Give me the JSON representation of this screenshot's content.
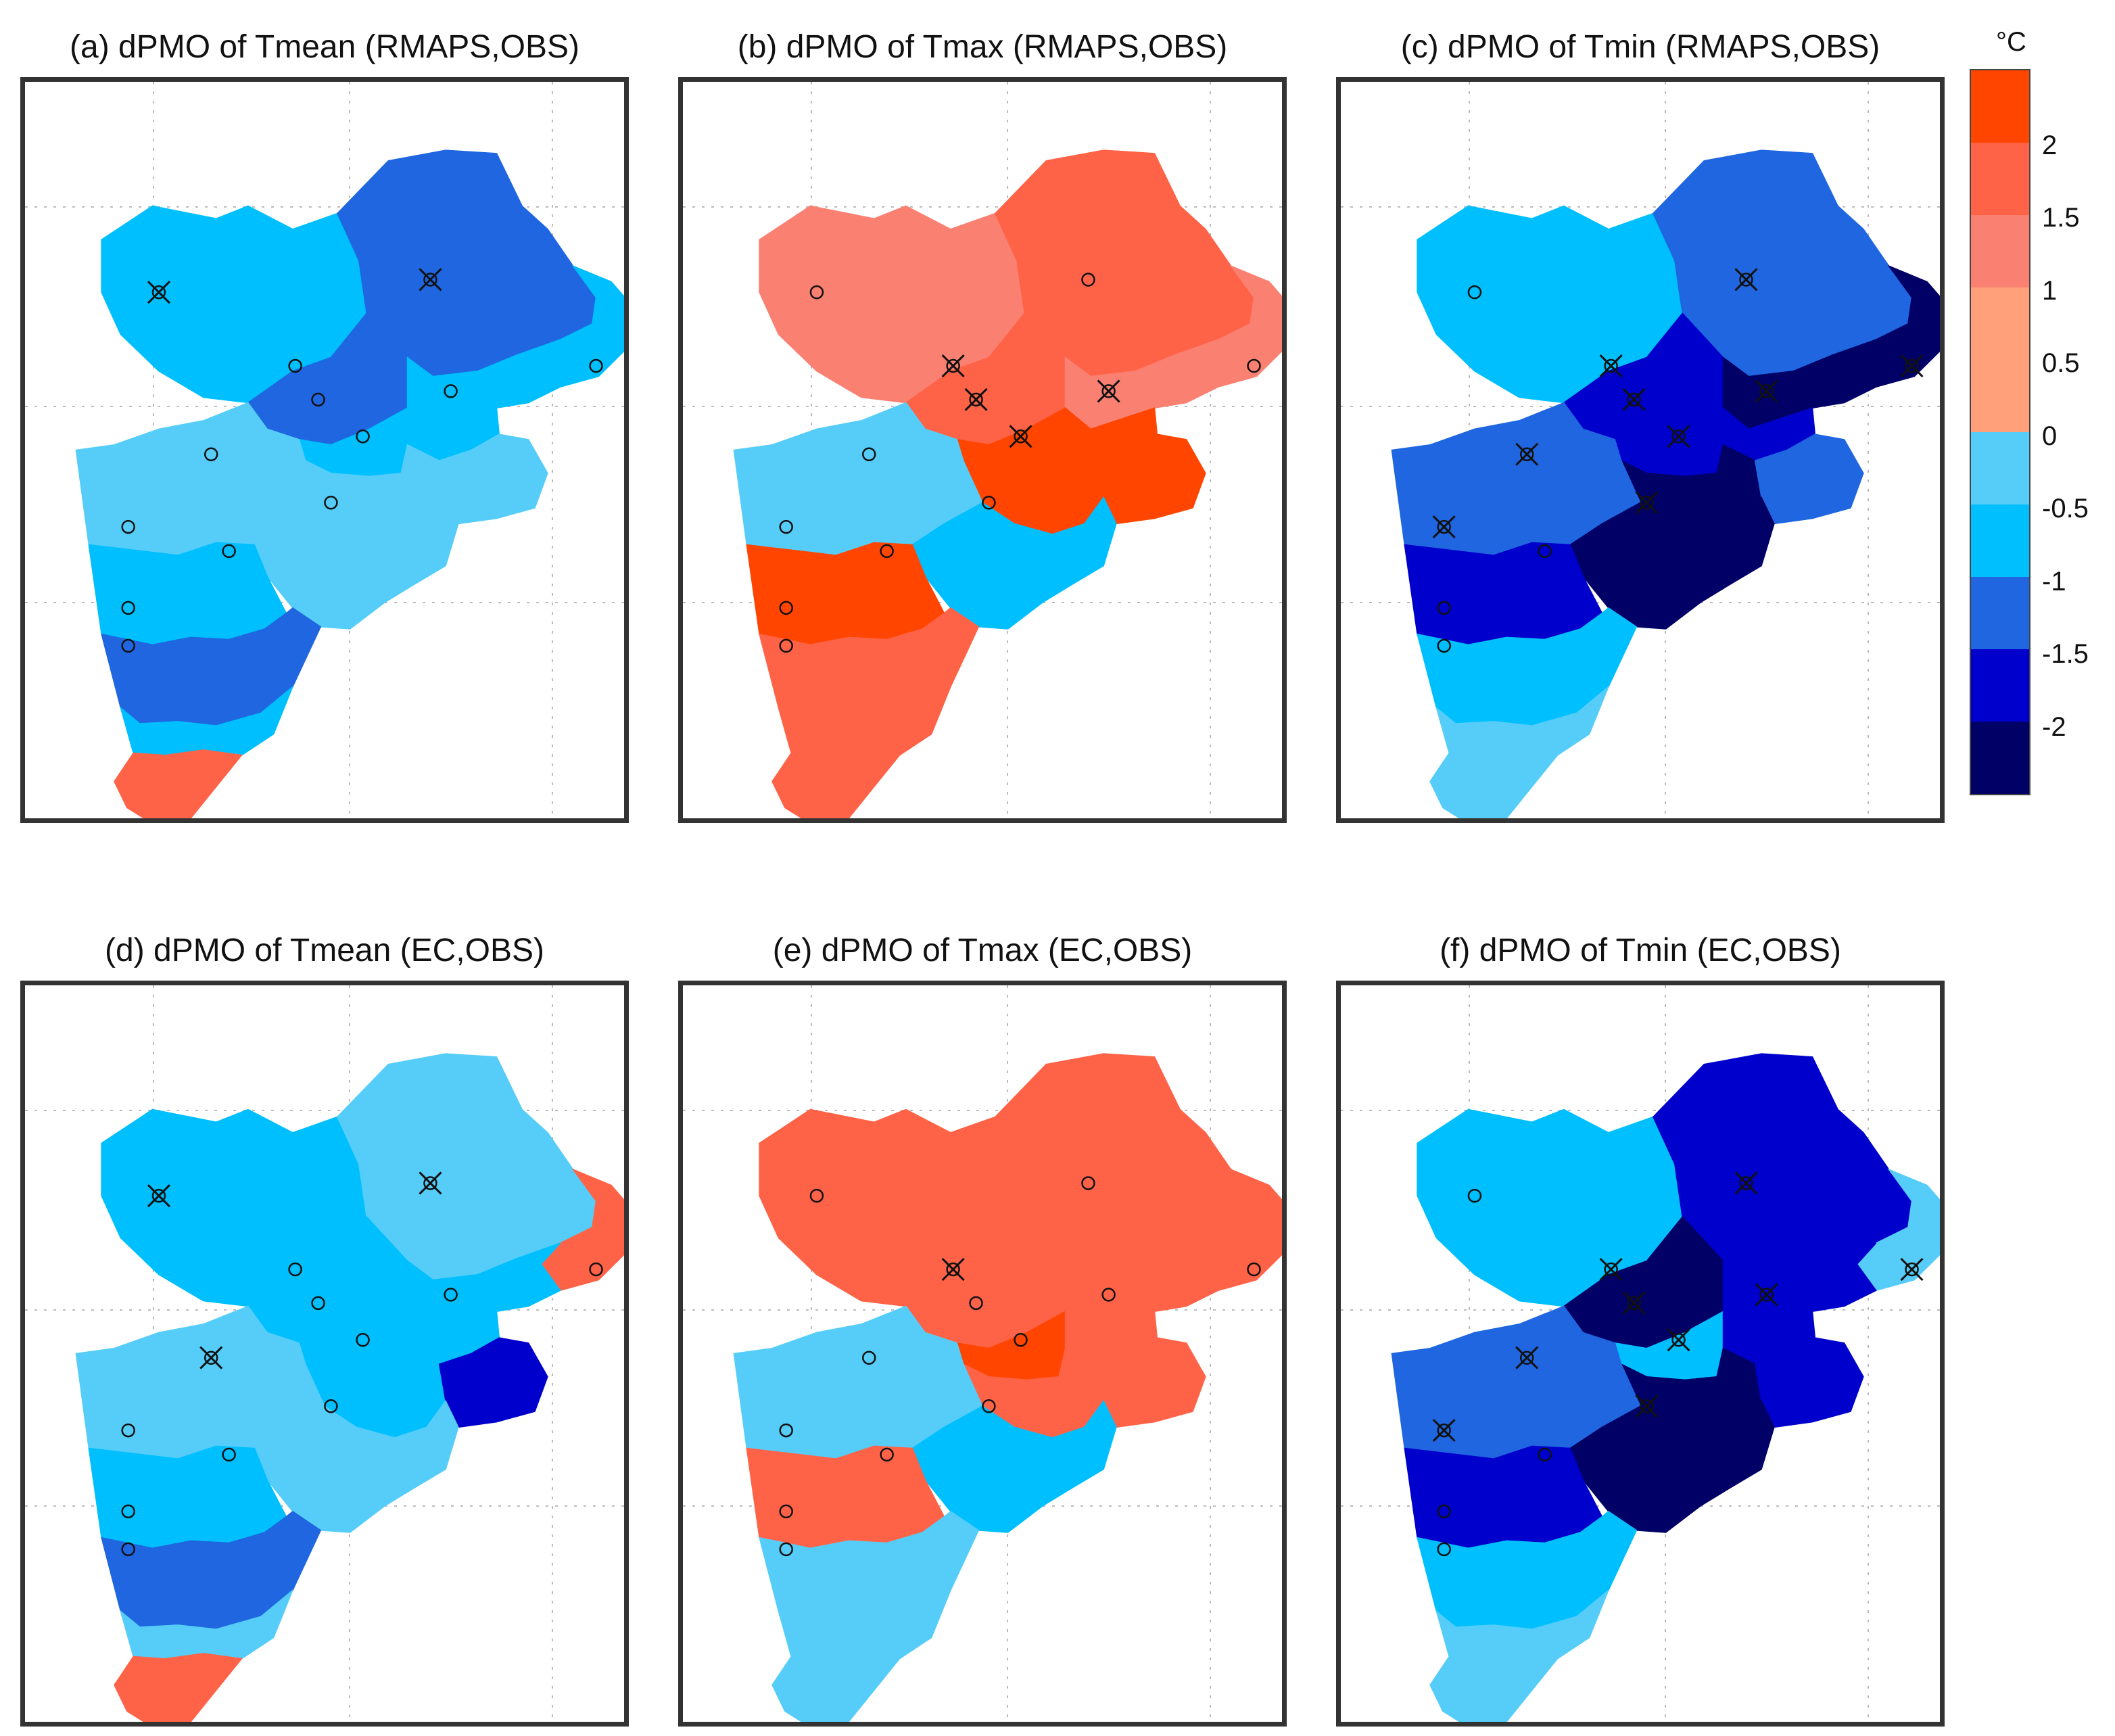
{
  "figure": {
    "panels": [
      {
        "id": "a",
        "title": "(a) dPMO of Tmean (RMAPS,OBS)",
        "regions": {
          "r1": 4,
          "r2": 3,
          "r3": 4,
          "r4": 3,
          "r5": 4,
          "r6": 4,
          "r7": 4,
          "r8": 5,
          "r9": 5,
          "r10": 6,
          "r11": 6,
          "r12": 4,
          "r13": 3,
          "r14": 4,
          "r15": 10
        },
        "stations": [
          "x",
          "x",
          "o",
          "o",
          "o",
          "o",
          "o",
          "o",
          "o",
          "o",
          "o",
          "o",
          "o"
        ]
      },
      {
        "id": "b",
        "title": "(b) dPMO of Tmax (RMAPS,OBS)",
        "regions": {
          "r1": 9,
          "r2": 10,
          "r3": 9,
          "r4": 10,
          "r5": 9,
          "r6": 11,
          "r7": 12,
          "r8": 12,
          "r9": 12,
          "r10": 5,
          "r11": 4,
          "r12": 11,
          "r13": 10,
          "r14": 10,
          "r15": 10
        },
        "stations": [
          "o",
          "o",
          "x",
          "x",
          "x",
          "x",
          "o",
          "o",
          "o",
          "o",
          "o",
          "o",
          "o"
        ]
      },
      {
        "id": "c",
        "title": "(c) dPMO of Tmin (RMAPS,OBS)",
        "regions": {
          "r1": 4,
          "r2": 3,
          "r3": 1,
          "r4": 2,
          "r5": 1,
          "r6": 2,
          "r7": 2,
          "r8": 1,
          "r9": 3,
          "r10": 3,
          "r11": 1,
          "r12": 2,
          "r13": 4,
          "r14": 5,
          "r15": 5
        },
        "stations": [
          "o",
          "x",
          "x",
          "x",
          "x",
          "x",
          "x",
          "x",
          "x",
          "x",
          "o",
          "o",
          "o"
        ]
      },
      {
        "id": "d",
        "title": "(d) dPMO of Tmean (EC,OBS)",
        "regions": {
          "r1": 4,
          "r2": 5,
          "r3": 10,
          "r4": 4,
          "r5": 4,
          "r6": 4,
          "r7": 4,
          "r8": 4,
          "r9": 2,
          "r10": 5,
          "r11": 5,
          "r12": 4,
          "r13": 3,
          "r14": 5,
          "r15": 10
        },
        "stations": [
          "x",
          "x",
          "o",
          "o",
          "o",
          "o",
          "o",
          "x",
          "o",
          "o",
          "o",
          "o",
          "o"
        ]
      },
      {
        "id": "e",
        "title": "(e) dPMO of Tmax (EC,OBS)",
        "regions": {
          "r1": 10,
          "r2": 10,
          "r3": 10,
          "r4": 10,
          "r5": 10,
          "r6": 11,
          "r7": 10,
          "r8": 10,
          "r9": 10,
          "r10": 5,
          "r11": 4,
          "r12": 10,
          "r13": 5,
          "r14": 5,
          "r15": 5
        },
        "stations": [
          "o",
          "o",
          "x",
          "o",
          "o",
          "o",
          "o",
          "o",
          "o",
          "o",
          "o",
          "o",
          "o"
        ]
      },
      {
        "id": "f",
        "title": "(f) dPMO of Tmin (EC,OBS)",
        "regions": {
          "r1": 4,
          "r2": 2,
          "r3": 5,
          "r4": 1,
          "r5": 2,
          "r6": 4,
          "r7": 2,
          "r8": 1,
          "r9": 2,
          "r10": 3,
          "r11": 1,
          "r12": 2,
          "r13": 4,
          "r14": 5,
          "r15": 5
        },
        "stations": [
          "o",
          "x",
          "x",
          "x",
          "x",
          "x",
          "x",
          "x",
          "x",
          "x",
          "o",
          "o",
          "o"
        ]
      }
    ],
    "colorbar": {
      "unit": "°C",
      "tick_labels": [
        "2",
        "1.5",
        "1",
        "0.5",
        "0",
        "-0.5",
        "-1",
        "-1.5",
        "-2"
      ],
      "class_ranges": [
        [
          -99,
          -2.25
        ],
        [
          -2.25,
          -1.75
        ],
        [
          -1.75,
          -1.25
        ],
        [
          -1.25,
          -0.75
        ],
        [
          -0.75,
          -0.25
        ],
        [
          -0.25,
          0
        ],
        [
          0,
          0.25
        ],
        [
          0.25,
          0.75
        ],
        [
          0.75,
          1.25
        ],
        [
          1.25,
          1.75
        ],
        [
          1.75,
          2.25
        ],
        [
          2.25,
          99
        ]
      ],
      "colors": [
        "#000066",
        "#0000cc",
        "#1f66e0",
        "#00bfff",
        "#55cdf8",
        "#55cdf8",
        "#ffa07a",
        "#ffa07a",
        "#fa8072",
        "#ff6347",
        "#ff4500",
        "#ff4500"
      ]
    }
  }
}
